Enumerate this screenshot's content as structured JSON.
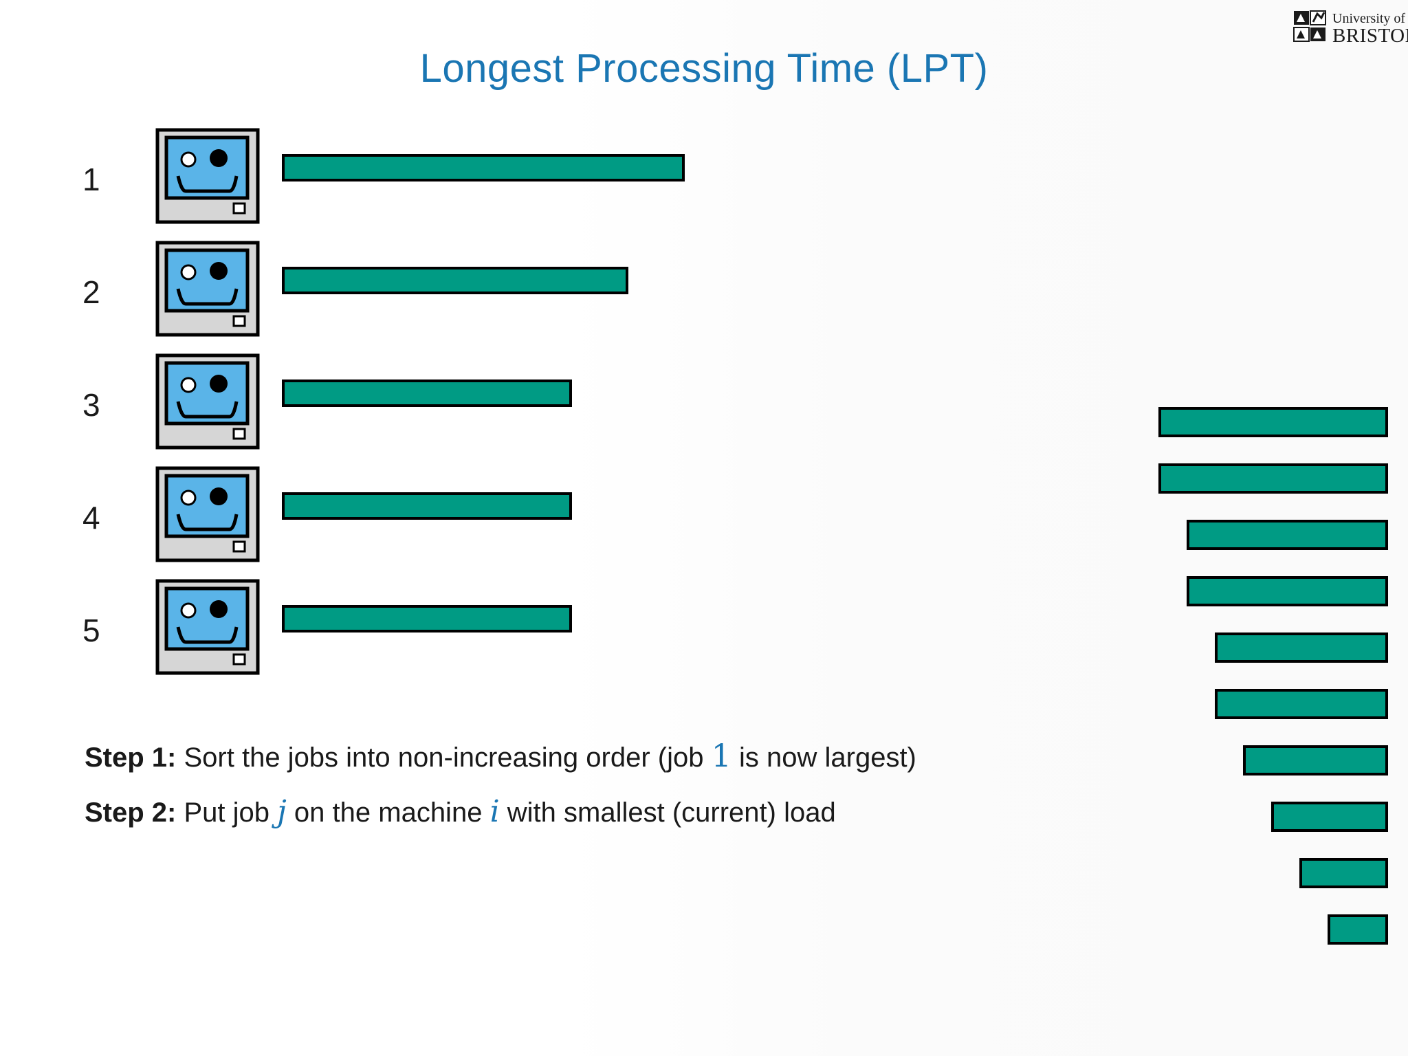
{
  "slide": {
    "title": "Longest Processing Time (LPT)",
    "logo": {
      "line1": "University of",
      "line2": "BRISTOL"
    }
  },
  "machines": [
    {
      "label": "1",
      "load": 7
    },
    {
      "label": "2",
      "load": 6
    },
    {
      "label": "3",
      "load": 5
    },
    {
      "label": "4",
      "load": 5
    },
    {
      "label": "5",
      "load": 5
    }
  ],
  "jobs": [
    {
      "size": 4
    },
    {
      "size": 4
    },
    {
      "size": 3.5
    },
    {
      "size": 3.5
    },
    {
      "size": 3
    },
    {
      "size": 3
    },
    {
      "size": 2.5
    },
    {
      "size": 2
    },
    {
      "size": 1.5
    },
    {
      "size": 1
    }
  ],
  "steps": {
    "step1": {
      "label": "Step 1:",
      "text_before": "Sort the jobs into non-increasing order (job",
      "math": "1",
      "text_after": "is now largest)"
    },
    "step2": {
      "label": "Step 2:",
      "text_a": "Put job",
      "math_j": "j",
      "text_b": "on the machine",
      "math_i": "i",
      "text_c": "with smallest (current) load"
    }
  },
  "colors": {
    "title": "#1a76b3",
    "bar_fill": "#009b84",
    "bar_border": "#000000",
    "screen": "#5ab4e8",
    "case": "#d6d6d6"
  }
}
